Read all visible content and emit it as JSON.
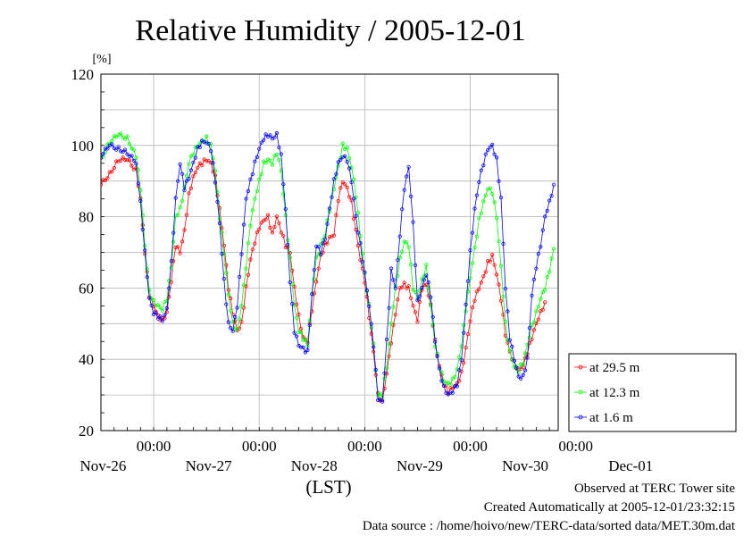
{
  "chart_data": {
    "type": "line",
    "title": "Relative Humidity / 2005-12-01",
    "ylabel": "[%]",
    "xlabel": "(LST)",
    "ylim": [
      20,
      120
    ],
    "y_ticks": [
      "20",
      "40",
      "60",
      "80",
      "100",
      "120"
    ],
    "x_tick_times": [
      "00:00",
      "00:00",
      "00:00",
      "00:00",
      "00:00"
    ],
    "x_day_labels": [
      "Nov-26",
      "Nov-27",
      "Nov-28",
      "Nov-29",
      "Nov-30",
      "Dec-01"
    ],
    "grid": true,
    "legend_position": "right",
    "x_unit": "hours from start of record (LST), record ends 2005-12-01 23:30; midnights at 12, 36, 60, 84, 108",
    "series": [
      {
        "name": "at 29.5 m",
        "color": "#ff0000",
        "points": [
          [
            0,
            89
          ],
          [
            2,
            92
          ],
          [
            4,
            96
          ],
          [
            6,
            96
          ],
          [
            8,
            93
          ],
          [
            9,
            85
          ],
          [
            10,
            70
          ],
          [
            11,
            58
          ],
          [
            12,
            55
          ],
          [
            13,
            52
          ],
          [
            14,
            51
          ],
          [
            15,
            53
          ],
          [
            16,
            62
          ],
          [
            17,
            72
          ],
          [
            18,
            70
          ],
          [
            19,
            76
          ],
          [
            20,
            86
          ],
          [
            21,
            91
          ],
          [
            22,
            94
          ],
          [
            23,
            95
          ],
          [
            24,
            96
          ],
          [
            25,
            95
          ],
          [
            26,
            91
          ],
          [
            27,
            82
          ],
          [
            28,
            72
          ],
          [
            29,
            60
          ],
          [
            30,
            53
          ],
          [
            31,
            48
          ],
          [
            32,
            50
          ],
          [
            33,
            60
          ],
          [
            34,
            68
          ],
          [
            35,
            73
          ],
          [
            36,
            77
          ],
          [
            37,
            79
          ],
          [
            38,
            80
          ],
          [
            39,
            75
          ],
          [
            40,
            80
          ],
          [
            41,
            76
          ],
          [
            42,
            72
          ],
          [
            43,
            70
          ],
          [
            44,
            60
          ],
          [
            45,
            52
          ],
          [
            46,
            46
          ],
          [
            47,
            45
          ],
          [
            48,
            54
          ],
          [
            49,
            62
          ],
          [
            50,
            69
          ],
          [
            51,
            72
          ],
          [
            52,
            74
          ],
          [
            53,
            75
          ],
          [
            54,
            85
          ],
          [
            55,
            90
          ],
          [
            56,
            88
          ],
          [
            57,
            84
          ],
          [
            58,
            76
          ],
          [
            59,
            68
          ],
          [
            60,
            62
          ],
          [
            61,
            52
          ],
          [
            62,
            42
          ],
          [
            63,
            30
          ],
          [
            64,
            28
          ],
          [
            65,
            36
          ],
          [
            66,
            45
          ],
          [
            67,
            53
          ],
          [
            68,
            60
          ],
          [
            69,
            61
          ],
          [
            70,
            60
          ],
          [
            71,
            55
          ],
          [
            72,
            51
          ],
          [
            73,
            60
          ],
          [
            74,
            61
          ],
          [
            75,
            55
          ],
          [
            76,
            45
          ],
          [
            77,
            38
          ],
          [
            78,
            33
          ],
          [
            79,
            31
          ],
          [
            80,
            32
          ],
          [
            81,
            33
          ],
          [
            82,
            36
          ],
          [
            83,
            43
          ],
          [
            84,
            51
          ],
          [
            85,
            57
          ],
          [
            86,
            60
          ],
          [
            87,
            63
          ],
          [
            88,
            67
          ],
          [
            89,
            69
          ],
          [
            90,
            64
          ],
          [
            91,
            57
          ],
          [
            92,
            47
          ],
          [
            93,
            42
          ],
          [
            94,
            39
          ],
          [
            95,
            37
          ],
          [
            96,
            38
          ],
          [
            97,
            42
          ],
          [
            98,
            46
          ],
          [
            99,
            50
          ],
          [
            100,
            53
          ],
          [
            101,
            56
          ]
        ]
      },
      {
        "name": "at 12.3 m",
        "color": "#00ff00",
        "points": [
          [
            0,
            96
          ],
          [
            2,
            101
          ],
          [
            4,
            103
          ],
          [
            6,
            102
          ],
          [
            8,
            97
          ],
          [
            9,
            88
          ],
          [
            10,
            72
          ],
          [
            11,
            59
          ],
          [
            12,
            56
          ],
          [
            13,
            55
          ],
          [
            14,
            54
          ],
          [
            15,
            57
          ],
          [
            16,
            66
          ],
          [
            17,
            80
          ],
          [
            18,
            82
          ],
          [
            19,
            88
          ],
          [
            20,
            95
          ],
          [
            21,
            98
          ],
          [
            22,
            100
          ],
          [
            23,
            101
          ],
          [
            24,
            102
          ],
          [
            25,
            100
          ],
          [
            26,
            93
          ],
          [
            27,
            80
          ],
          [
            28,
            70
          ],
          [
            29,
            58
          ],
          [
            30,
            50
          ],
          [
            31,
            48
          ],
          [
            32,
            55
          ],
          [
            33,
            66
          ],
          [
            34,
            78
          ],
          [
            35,
            85
          ],
          [
            36,
            90
          ],
          [
            37,
            95
          ],
          [
            38,
            96
          ],
          [
            39,
            95
          ],
          [
            40,
            98
          ],
          [
            41,
            93
          ],
          [
            42,
            80
          ],
          [
            43,
            68
          ],
          [
            44,
            55
          ],
          [
            45,
            48
          ],
          [
            46,
            46
          ],
          [
            47,
            44
          ],
          [
            48,
            58
          ],
          [
            49,
            68
          ],
          [
            50,
            72
          ],
          [
            51,
            75
          ],
          [
            52,
            82
          ],
          [
            53,
            88
          ],
          [
            54,
            94
          ],
          [
            55,
            100
          ],
          [
            56,
            99
          ],
          [
            57,
            94
          ],
          [
            58,
            86
          ],
          [
            59,
            75
          ],
          [
            60,
            64
          ],
          [
            61,
            55
          ],
          [
            62,
            44
          ],
          [
            63,
            30
          ],
          [
            64,
            30
          ],
          [
            65,
            38
          ],
          [
            66,
            50
          ],
          [
            67,
            60
          ],
          [
            68,
            68
          ],
          [
            69,
            73
          ],
          [
            70,
            72
          ],
          [
            71,
            60
          ],
          [
            72,
            57
          ],
          [
            73,
            62
          ],
          [
            74,
            66
          ],
          [
            75,
            55
          ],
          [
            76,
            44
          ],
          [
            77,
            38
          ],
          [
            78,
            34
          ],
          [
            79,
            33
          ],
          [
            80,
            34
          ],
          [
            81,
            37
          ],
          [
            82,
            44
          ],
          [
            83,
            54
          ],
          [
            84,
            63
          ],
          [
            85,
            71
          ],
          [
            86,
            79
          ],
          [
            87,
            84
          ],
          [
            88,
            88
          ],
          [
            89,
            87
          ],
          [
            90,
            80
          ],
          [
            91,
            66
          ],
          [
            92,
            50
          ],
          [
            93,
            42
          ],
          [
            94,
            38
          ],
          [
            95,
            37
          ],
          [
            96,
            39
          ],
          [
            97,
            44
          ],
          [
            98,
            49
          ],
          [
            99,
            53
          ],
          [
            100,
            57
          ],
          [
            101,
            60
          ],
          [
            102,
            65
          ],
          [
            103,
            71
          ]
        ]
      },
      {
        "name": "at 1.6 m",
        "color": "#0000ff",
        "points": [
          [
            0,
            97
          ],
          [
            2,
            100
          ],
          [
            4,
            99
          ],
          [
            6,
            98
          ],
          [
            8,
            95
          ],
          [
            9,
            84
          ],
          [
            10,
            70
          ],
          [
            11,
            57
          ],
          [
            12,
            53
          ],
          [
            13,
            52
          ],
          [
            14,
            51
          ],
          [
            15,
            54
          ],
          [
            16,
            67
          ],
          [
            17,
            85
          ],
          [
            18,
            95
          ],
          [
            19,
            88
          ],
          [
            20,
            91
          ],
          [
            21,
            95
          ],
          [
            22,
            99
          ],
          [
            23,
            101
          ],
          [
            24,
            101
          ],
          [
            25,
            99
          ],
          [
            26,
            90
          ],
          [
            27,
            78
          ],
          [
            28,
            62
          ],
          [
            29,
            50
          ],
          [
            30,
            48
          ],
          [
            31,
            55
          ],
          [
            32,
            70
          ],
          [
            33,
            85
          ],
          [
            34,
            90
          ],
          [
            35,
            95
          ],
          [
            36,
            99
          ],
          [
            37,
            102
          ],
          [
            38,
            103
          ],
          [
            39,
            102
          ],
          [
            40,
            103
          ],
          [
            41,
            97
          ],
          [
            42,
            82
          ],
          [
            43,
            62
          ],
          [
            44,
            48
          ],
          [
            45,
            44
          ],
          [
            46,
            43
          ],
          [
            47,
            42
          ],
          [
            48,
            58
          ],
          [
            49,
            72
          ],
          [
            50,
            70
          ],
          [
            51,
            74
          ],
          [
            52,
            82
          ],
          [
            53,
            90
          ],
          [
            54,
            95
          ],
          [
            55,
            97
          ],
          [
            56,
            96
          ],
          [
            57,
            90
          ],
          [
            58,
            80
          ],
          [
            59,
            72
          ],
          [
            60,
            64
          ],
          [
            61,
            55
          ],
          [
            62,
            44
          ],
          [
            63,
            29
          ],
          [
            64,
            28
          ],
          [
            65,
            45
          ],
          [
            66,
            65
          ],
          [
            67,
            60
          ],
          [
            68,
            75
          ],
          [
            69,
            88
          ],
          [
            70,
            94
          ],
          [
            71,
            78
          ],
          [
            72,
            56
          ],
          [
            73,
            60
          ],
          [
            74,
            64
          ],
          [
            75,
            58
          ],
          [
            76,
            45
          ],
          [
            77,
            37
          ],
          [
            78,
            32
          ],
          [
            79,
            30
          ],
          [
            80,
            31
          ],
          [
            81,
            33
          ],
          [
            82,
            40
          ],
          [
            83,
            55
          ],
          [
            84,
            70
          ],
          [
            85,
            82
          ],
          [
            86,
            90
          ],
          [
            87,
            95
          ],
          [
            88,
            99
          ],
          [
            89,
            100
          ],
          [
            90,
            96
          ],
          [
            91,
            85
          ],
          [
            92,
            60
          ],
          [
            93,
            46
          ],
          [
            94,
            40
          ],
          [
            95,
            35
          ],
          [
            96,
            35
          ],
          [
            97,
            40
          ],
          [
            98,
            58
          ],
          [
            99,
            66
          ],
          [
            100,
            72
          ],
          [
            101,
            80
          ],
          [
            102,
            84
          ],
          [
            103,
            89
          ]
        ]
      }
    ]
  },
  "footer": {
    "line1": "Observed at TERC Tower site",
    "line2": "Created Automatically at 2005-12-01/23:32:15",
    "line3": "Data source : /home/hoivo/new/TERC-data/sorted  data/MET.30m.dat"
  }
}
